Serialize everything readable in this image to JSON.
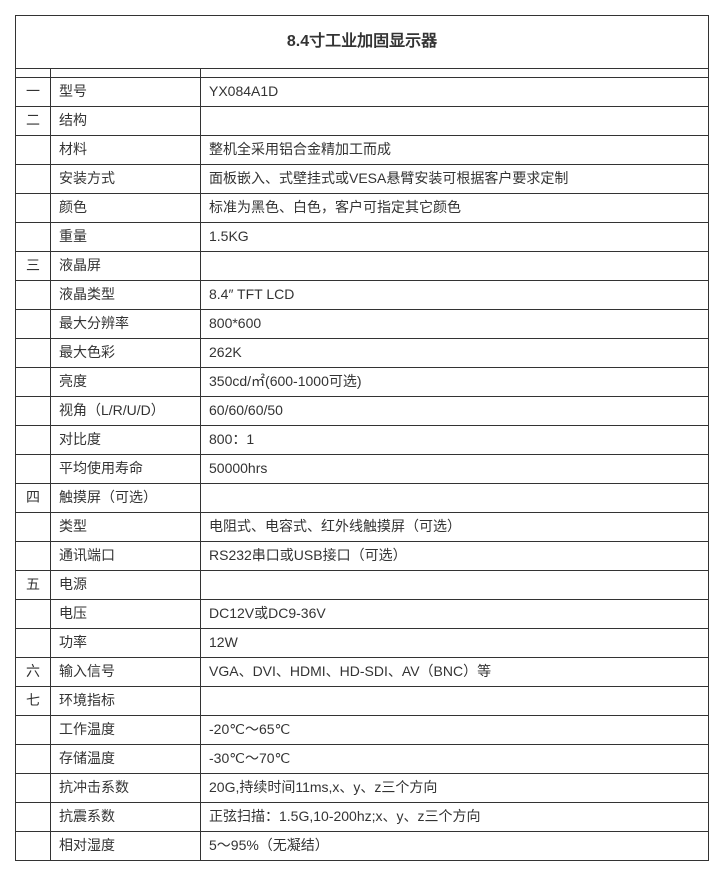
{
  "title": "8.4寸工业加固显示器",
  "columns": {
    "num_width": 35,
    "name_width": 150
  },
  "colors": {
    "border": "#333333",
    "text": "#333333",
    "background": "#ffffff"
  },
  "typography": {
    "title_fontsize": 16,
    "title_fontweight": "bold",
    "body_fontsize": 14,
    "font_family": "Microsoft YaHei"
  },
  "rows": [
    {
      "num": "一",
      "name": "型号",
      "value": "YX084A1D"
    },
    {
      "num": "二",
      "name": "结构",
      "value": ""
    },
    {
      "num": "",
      "name": "材料",
      "value": "整机全采用铝合金精加工而成"
    },
    {
      "num": "",
      "name": "安装方式",
      "value": "面板嵌入、式壁挂式或VESA悬臂安装可根据客户要求定制"
    },
    {
      "num": "",
      "name": "颜色",
      "value": "标准为黑色、白色，客户可指定其它颜色"
    },
    {
      "num": "",
      "name": "重量",
      "value": "1.5KG"
    },
    {
      "num": "三",
      "name": "液晶屏",
      "value": ""
    },
    {
      "num": "",
      "name": "液晶类型",
      "value": "8.4″  TFT LCD"
    },
    {
      "num": "",
      "name": "最大分辨率",
      "value": "800*600"
    },
    {
      "num": "",
      "name": "最大色彩",
      "value": "262K"
    },
    {
      "num": "",
      "name": "亮度",
      "value": "350cd/㎡(600-1000可选)"
    },
    {
      "num": "",
      "name": "视角（L/R/U/D）",
      "value": "60/60/60/50"
    },
    {
      "num": "",
      "name": "对比度",
      "value": "800：1"
    },
    {
      "num": "",
      "name": "平均使用寿命",
      "value": "50000hrs"
    },
    {
      "num": "四",
      "name": "触摸屏（可选）",
      "value": ""
    },
    {
      "num": "",
      "name": "类型",
      "value": "电阻式、电容式、红外线触摸屏（可选）"
    },
    {
      "num": "",
      "name": "通讯端口",
      "value": "RS232串口或USB接口（可选）"
    },
    {
      "num": "五",
      "name": "电源",
      "value": ""
    },
    {
      "num": "",
      "name": "电压",
      "value": "DC12V或DC9-36V"
    },
    {
      "num": "",
      "name": "功率",
      "value": "12W"
    },
    {
      "num": "六",
      "name": "输入信号",
      "value": "VGA、DVI、HDMI、HD-SDI、AV（BNC）等"
    },
    {
      "num": "七",
      "name": "环境指标",
      "value": ""
    },
    {
      "num": "",
      "name": "工作温度",
      "value": "-20℃～65℃"
    },
    {
      "num": "",
      "name": "存储温度",
      "value": "-30℃～70℃"
    },
    {
      "num": "",
      "name": "抗冲击系数",
      "value": "20G,持续时间11ms,x、y、z三个方向"
    },
    {
      "num": "",
      "name": "抗震系数",
      "value": "正弦扫描：1.5G,10-200hz;x、y、z三个方向"
    },
    {
      "num": "",
      "name": "相对湿度",
      "value": "5～95%（无凝结）"
    }
  ]
}
